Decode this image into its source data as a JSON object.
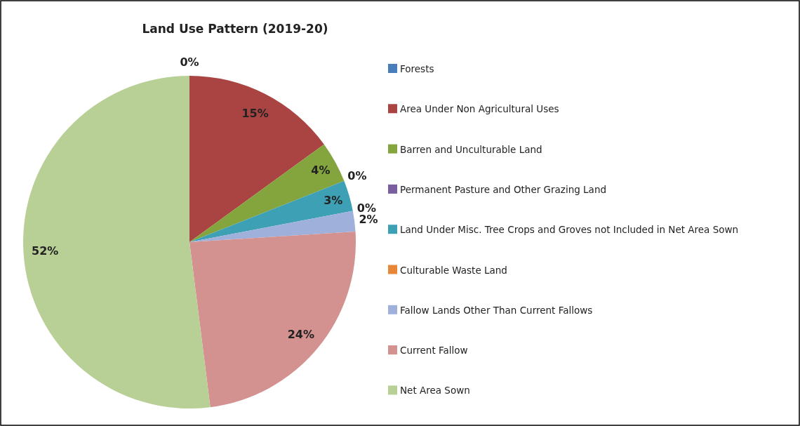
{
  "chart_data": {
    "type": "pie",
    "title": "Land Use Pattern (2019-20)",
    "categories": [
      "Forests",
      "Area Under Non Agricultural Uses",
      "Barren and Unculturable Land",
      "Permanent Pasture and Other Grazing Land",
      "Land Under Misc. Tree Crops and Groves not Included in Net Area Sown",
      "Culturable Waste Land",
      "Fallow Lands Other Than Current Fallows",
      "Current Fallow",
      "Net Area Sown"
    ],
    "values": [
      0,
      15,
      4,
      0,
      3,
      0,
      2,
      24,
      52
    ],
    "value_labels": [
      "0%",
      "15%",
      "4%",
      "0%",
      "3%",
      "0%",
      "2%",
      "24%",
      "52%"
    ],
    "colors": [
      "#4a7ebb",
      "#a94442",
      "#84a43e",
      "#7a5fa0",
      "#3ea0b5",
      "#e8873a",
      "#9fb0da",
      "#d39190",
      "#b8cf95"
    ],
    "legend": "right"
  }
}
